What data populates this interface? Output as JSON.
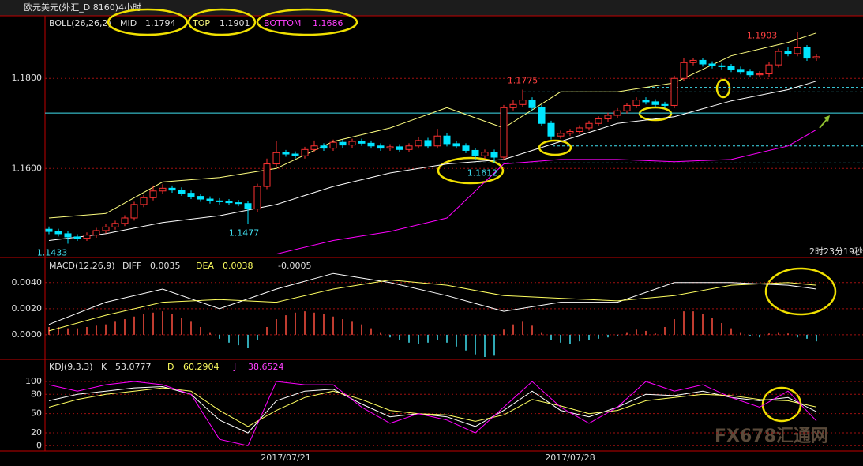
{
  "chart_data": [
    {
      "type": "candlestick",
      "title": "欧元美元(外汇_D 8160)4小时",
      "indicator": "BOLL(26,26,2)",
      "categories": [
        null,
        null,
        null,
        null,
        null,
        null,
        null,
        null,
        null,
        null,
        null,
        null,
        null,
        null,
        null,
        null,
        null,
        null,
        null,
        null,
        null,
        null,
        null,
        null,
        null,
        "2017/07/21",
        null,
        null,
        null,
        null,
        null,
        null,
        null,
        null,
        null,
        null,
        null,
        null,
        null,
        null,
        null,
        null,
        null,
        null,
        null,
        null,
        null,
        null,
        null,
        null,
        null,
        null,
        null,
        null,
        null,
        "2017/07/28",
        null,
        null,
        null,
        null,
        null,
        null,
        null,
        null,
        null,
        null,
        null,
        null,
        null,
        null,
        null,
        null,
        null,
        null,
        null,
        null,
        null,
        null,
        null,
        null,
        null,
        null
      ],
      "open": [
        1.1465,
        1.146,
        1.1455,
        1.1448,
        1.1445,
        1.1452,
        1.1462,
        1.147,
        1.1478,
        1.149,
        1.152,
        1.1535,
        1.155,
        1.1556,
        1.1552,
        1.1545,
        1.1538,
        1.1532,
        1.1528,
        1.1526,
        1.1524,
        1.1522,
        1.151,
        1.156,
        1.161,
        1.1635,
        1.1632,
        1.1628,
        1.1642,
        1.165,
        1.1645,
        1.1658,
        1.1652,
        1.166,
        1.1656,
        1.165,
        1.1645,
        1.1648,
        1.1642,
        1.165,
        1.1662,
        1.165,
        1.1672,
        1.1655,
        1.165,
        1.164,
        1.1628,
        1.1636,
        1.1625,
        1.1735,
        1.1742,
        1.1752,
        1.1735,
        1.17,
        1.1672,
        1.1678,
        1.1682,
        1.169,
        1.17,
        1.171,
        1.1718,
        1.1728,
        1.174,
        1.1752,
        1.1748,
        1.1742,
        1.174,
        1.18,
        1.1835,
        1.184,
        1.1832,
        1.1828,
        1.1826,
        1.182,
        1.1815,
        1.1808,
        1.181,
        1.183,
        1.186,
        1.1855,
        1.1868,
        1.1845
      ],
      "high": [
        1.1471,
        1.1466,
        1.1461,
        1.1454,
        1.1458,
        1.1468,
        1.1476,
        1.1484,
        1.1496,
        1.1526,
        1.1541,
        1.1562,
        1.1565,
        1.1562,
        1.1558,
        1.1551,
        1.1544,
        1.1538,
        1.1534,
        1.1532,
        1.153,
        1.1528,
        1.1566,
        1.1622,
        1.166,
        1.1641,
        1.1638,
        1.1648,
        1.1662,
        1.1656,
        1.1664,
        1.1664,
        1.1666,
        1.1666,
        1.1662,
        1.1656,
        1.1654,
        1.1654,
        1.1656,
        1.167,
        1.1668,
        1.1688,
        1.1678,
        1.1661,
        1.1656,
        1.1646,
        1.1642,
        1.1642,
        1.1741,
        1.1752,
        1.1775,
        1.1758,
        1.1741,
        1.1706,
        1.1684,
        1.1688,
        1.1696,
        1.1706,
        1.1716,
        1.1724,
        1.1734,
        1.1746,
        1.1758,
        1.1758,
        1.1754,
        1.1748,
        1.1806,
        1.1845,
        1.1846,
        1.1846,
        1.1838,
        1.1834,
        1.1832,
        1.1826,
        1.1821,
        1.1816,
        1.1836,
        1.1866,
        1.187,
        1.1903,
        1.1874,
        1.1854
      ],
      "low": [
        1.1454,
        1.1449,
        1.1433,
        1.1439,
        1.1439,
        1.1446,
        1.1456,
        1.1464,
        1.1472,
        1.1484,
        1.1514,
        1.1529,
        1.1544,
        1.1546,
        1.1539,
        1.1532,
        1.1526,
        1.1522,
        1.152,
        1.1518,
        1.1516,
        1.1477,
        1.1504,
        1.1554,
        1.1604,
        1.1626,
        1.1622,
        1.1622,
        1.1636,
        1.1639,
        1.1639,
        1.1646,
        1.1646,
        1.165,
        1.1644,
        1.1639,
        1.1639,
        1.1636,
        1.1636,
        1.1644,
        1.1644,
        1.1644,
        1.1649,
        1.1644,
        1.1634,
        1.162,
        1.1622,
        1.1612,
        1.1619,
        1.1729,
        1.1736,
        1.1729,
        1.1694,
        1.1664,
        1.1666,
        1.1672,
        1.1676,
        1.1684,
        1.1694,
        1.1704,
        1.1712,
        1.1722,
        1.1734,
        1.1742,
        1.1736,
        1.1734,
        1.1734,
        1.1794,
        1.1829,
        1.1826,
        1.1822,
        1.182,
        1.1814,
        1.1809,
        1.1802,
        1.1802,
        1.1804,
        1.1824,
        1.1849,
        1.1849,
        1.1839,
        1.1839
      ],
      "close": [
        1.146,
        1.1455,
        1.1448,
        1.1445,
        1.1452,
        1.1462,
        1.147,
        1.1478,
        1.149,
        1.152,
        1.1535,
        1.155,
        1.1556,
        1.1552,
        1.1545,
        1.1538,
        1.1532,
        1.1528,
        1.1526,
        1.1524,
        1.1522,
        1.151,
        1.156,
        1.161,
        1.1635,
        1.1632,
        1.1628,
        1.1642,
        1.165,
        1.1645,
        1.1658,
        1.1652,
        1.166,
        1.1656,
        1.165,
        1.1645,
        1.1648,
        1.1642,
        1.165,
        1.1662,
        1.165,
        1.1672,
        1.1655,
        1.165,
        1.164,
        1.1628,
        1.1636,
        1.1625,
        1.1735,
        1.1742,
        1.1752,
        1.1735,
        1.17,
        1.1672,
        1.1678,
        1.1682,
        1.169,
        1.17,
        1.171,
        1.1718,
        1.1728,
        1.174,
        1.1752,
        1.1748,
        1.1742,
        1.174,
        1.18,
        1.1835,
        1.184,
        1.1832,
        1.1828,
        1.1826,
        1.182,
        1.1815,
        1.1808,
        1.181,
        1.183,
        1.186,
        1.1855,
        1.1868,
        1.1845,
        1.1848
      ],
      "up_color": "#ff3232",
      "down_color": "#00e5ff",
      "ylim": [
        1.1404,
        1.1939
      ],
      "yticks": [
        {
          "value": 1.16,
          "label": "1.1600"
        },
        {
          "value": 1.18,
          "label": "1.1800"
        }
      ],
      "grid": true,
      "lines": [
        {
          "name": "MID",
          "color": "#ffffff",
          "x": [
            0,
            6,
            12,
            18,
            24,
            30,
            36,
            42,
            48,
            54,
            60,
            66,
            72,
            78,
            81
          ],
          "values": [
            1.144,
            1.1455,
            1.148,
            1.1495,
            1.152,
            1.156,
            1.159,
            1.161,
            1.162,
            1.166,
            1.17,
            1.1715,
            1.175,
            1.1775,
            1.1794
          ]
        },
        {
          "name": "TOP",
          "color": "#ffff80",
          "x": [
            0,
            6,
            12,
            18,
            24,
            30,
            36,
            42,
            48,
            54,
            60,
            66,
            72,
            78,
            81
          ],
          "values": [
            1.149,
            1.15,
            1.157,
            1.158,
            1.16,
            1.166,
            1.169,
            1.1735,
            1.169,
            1.177,
            1.177,
            1.179,
            1.185,
            1.188,
            1.1901
          ]
        },
        {
          "name": "BOTTOM",
          "color": "#ff00ff",
          "x": [
            0,
            6,
            12,
            18,
            24,
            30,
            36,
            42,
            48,
            54,
            60,
            66,
            72,
            78,
            81
          ],
          "values": [
            null,
            null,
            null,
            null,
            1.141,
            1.144,
            1.146,
            1.149,
            1.161,
            1.162,
            1.162,
            1.1615,
            1.162,
            1.165,
            1.1686
          ]
        }
      ],
      "hlines": [
        1.1723,
        1.178,
        1.177,
        1.165,
        1.1612
      ],
      "hline_color": "#40e0f0",
      "timer": "2时23分19秒",
      "watermark": "FX678汇通网"
    },
    {
      "type": "macd",
      "indicator": "MACD(12,26,9)",
      "values": [
        0.0006,
        0.0006,
        0.0005,
        0.0005,
        0.0006,
        0.0007,
        0.0008,
        0.001,
        0.0012,
        0.0014,
        0.0016,
        0.0017,
        0.0018,
        0.0016,
        0.0013,
        0.001,
        0.0006,
        0.0002,
        -0.0003,
        -0.0006,
        -0.0008,
        -0.001,
        -0.0004,
        0.0006,
        0.0012,
        0.0015,
        0.0017,
        0.0018,
        0.0017,
        0.0016,
        0.0014,
        0.0012,
        0.001,
        0.0008,
        0.0005,
        0.0002,
        -0.0002,
        -0.0004,
        -0.0006,
        -0.0007,
        -0.0006,
        -0.0004,
        -0.0006,
        -0.0009,
        -0.0012,
        -0.0015,
        -0.0017,
        -0.0016,
        0.0004,
        0.0008,
        0.001,
        0.0007,
        0.0002,
        -0.0004,
        -0.0006,
        -0.0007,
        -0.0005,
        -0.0004,
        -0.0003,
        -0.0002,
        -0.0001,
        0.0002,
        0.0004,
        0.0003,
        0.0001,
        0.0006,
        0.0012,
        0.0018,
        0.0018,
        0.0016,
        0.0013,
        0.0009,
        0.0005,
        0.0002,
        -0.0001,
        -0.0002,
        0.0001,
        0.0002,
        0.0001,
        -0.0002,
        -0.0003,
        -0.0005
      ],
      "up_color": "#ff5040",
      "down_color": "#40e0f0",
      "ylim": [
        -0.0017,
        0.0058
      ],
      "yticks": [
        {
          "value": 0,
          "label": "0.0000"
        },
        {
          "value": 0.002,
          "label": "0.0020"
        },
        {
          "value": 0.004,
          "label": "0.0040"
        }
      ],
      "grid": true,
      "series": [
        {
          "name": "DIFF",
          "color": "#ffffff",
          "x": [
            0,
            6,
            12,
            18,
            24,
            30,
            36,
            42,
            48,
            54,
            60,
            66,
            72,
            78,
            81
          ],
          "values": [
            0.0008,
            0.0025,
            0.0035,
            0.002,
            0.0035,
            0.0047,
            0.004,
            0.003,
            0.0018,
            0.0025,
            0.0025,
            0.004,
            0.004,
            0.0038,
            0.0035
          ]
        },
        {
          "name": "DEA",
          "color": "#ffff60",
          "x": [
            0,
            6,
            12,
            18,
            24,
            30,
            36,
            42,
            48,
            54,
            60,
            66,
            72,
            78,
            81
          ],
          "values": [
            0.0003,
            0.0015,
            0.0025,
            0.0027,
            0.0025,
            0.0035,
            0.0042,
            0.0038,
            0.003,
            0.0028,
            0.0026,
            0.003,
            0.0038,
            0.004,
            0.0038
          ]
        }
      ]
    },
    {
      "type": "line",
      "indicator": "KDJ(9,3,3)",
      "ylim": [
        -7,
        132
      ],
      "yticks": [
        0,
        20,
        50,
        80,
        100
      ],
      "grid": true,
      "series": [
        {
          "name": "K",
          "color": "#ffffff",
          "x": [
            0,
            3,
            6,
            9,
            12,
            15,
            18,
            21,
            24,
            27,
            30,
            33,
            36,
            39,
            42,
            45,
            48,
            51,
            54,
            57,
            60,
            63,
            66,
            69,
            72,
            75,
            78,
            81
          ],
          "values": [
            70,
            80,
            85,
            90,
            92,
            80,
            40,
            20,
            70,
            85,
            88,
            65,
            45,
            50,
            45,
            30,
            55,
            85,
            55,
            45,
            60,
            80,
            78,
            85,
            75,
            70,
            75,
            53.0777
          ]
        },
        {
          "name": "D",
          "color": "#ffff60",
          "x": [
            0,
            3,
            6,
            9,
            12,
            15,
            18,
            21,
            24,
            27,
            30,
            33,
            36,
            39,
            42,
            45,
            48,
            51,
            54,
            57,
            60,
            63,
            66,
            69,
            72,
            75,
            78,
            81
          ],
          "values": [
            60,
            72,
            80,
            85,
            90,
            85,
            55,
            30,
            55,
            75,
            85,
            72,
            55,
            50,
            48,
            38,
            48,
            72,
            62,
            50,
            55,
            70,
            75,
            80,
            78,
            72,
            70,
            60.2904
          ]
        },
        {
          "name": "J",
          "color": "#ff00ff",
          "x": [
            0,
            3,
            6,
            9,
            12,
            15,
            18,
            21,
            24,
            27,
            30,
            33,
            36,
            39,
            42,
            45,
            48,
            51,
            54,
            57,
            60,
            63,
            66,
            69,
            72,
            75,
            78,
            81
          ],
          "values": [
            95,
            85,
            95,
            100,
            95,
            80,
            10,
            0,
            100,
            95,
            95,
            60,
            35,
            50,
            40,
            20,
            60,
            100,
            60,
            35,
            60,
            100,
            85,
            95,
            75,
            60,
            85,
            38.6524
          ]
        }
      ]
    }
  ]
}
